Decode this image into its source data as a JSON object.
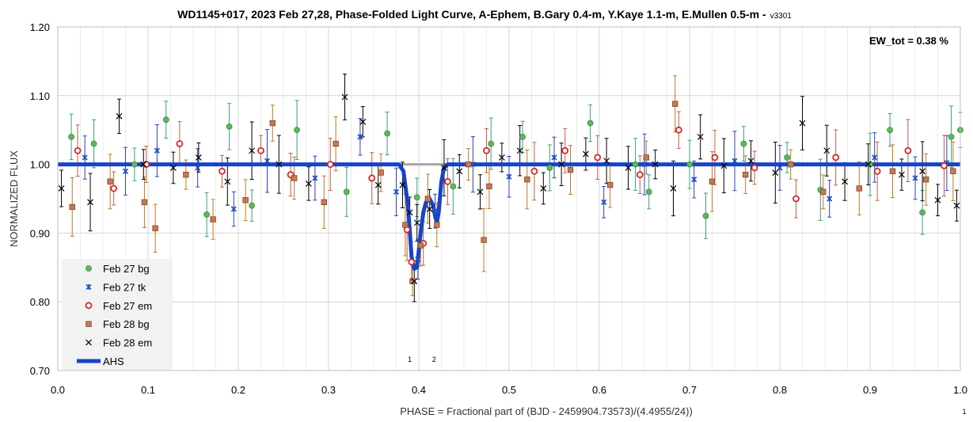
{
  "chart_data": {
    "type": "scatter",
    "title": "WD1145+017, 2023 Feb 27,28, Phase-Folded Light Curve, A-Ephem, B.Gary 0.4-m, Y.Kaye 1.1-m, E.Mullen 0.5-m -",
    "title_version": "v3301",
    "xlabel": "PHASE = Fractional part of (BJD - 2459904.73573)/(4.4955/24))",
    "ylabel": "NORMALIZED FLUX",
    "xlim": [
      0.0,
      1.0
    ],
    "ylim": [
      0.7,
      1.2
    ],
    "x_ticks": [
      "0.0",
      "0.1",
      "0.2",
      "0.3",
      "0.4",
      "0.5",
      "0.6",
      "0.7",
      "0.8",
      "0.9",
      "1.0"
    ],
    "y_ticks": [
      "0.70",
      "0.80",
      "0.90",
      "1.00",
      "1.10",
      "1.20"
    ],
    "grid": true,
    "legend_position": "bottom-left",
    "annotation": "EW_tot = 0.38 %",
    "dip_markers": [
      {
        "label": "1",
        "x": 0.39
      },
      {
        "label": "2",
        "x": 0.417
      }
    ],
    "corner_note": "1",
    "reference_level": {
      "y": 1.0,
      "color": "#a6a6a6"
    },
    "series": [
      {
        "name": "Feb 27 bg",
        "marker": "circle",
        "color": "#5cb85c",
        "edge": "#3c8d3c",
        "error_color": "#3c9e7c",
        "points": [
          [
            0.015,
            1.04
          ],
          [
            0.04,
            1.03
          ],
          [
            0.085,
            1.0
          ],
          [
            0.12,
            1.065
          ],
          [
            0.165,
            0.927
          ],
          [
            0.19,
            1.055
          ],
          [
            0.215,
            0.94
          ],
          [
            0.265,
            1.05
          ],
          [
            0.32,
            0.96
          ],
          [
            0.365,
            1.045
          ],
          [
            0.398,
            0.952
          ],
          [
            0.438,
            0.968
          ],
          [
            0.48,
            1.03
          ],
          [
            0.515,
            1.04
          ],
          [
            0.545,
            0.995
          ],
          [
            0.59,
            1.06
          ],
          [
            0.64,
            1.0
          ],
          [
            0.655,
            0.96
          ],
          [
            0.7,
            1.0
          ],
          [
            0.718,
            0.925
          ],
          [
            0.76,
            1.03
          ],
          [
            0.808,
            1.01
          ],
          [
            0.845,
            0.963
          ],
          [
            0.9,
            1.0
          ],
          [
            0.922,
            1.05
          ],
          [
            0.958,
            0.93
          ],
          [
            0.99,
            1.04
          ],
          [
            1.0,
            1.05
          ]
        ]
      },
      {
        "name": "Feb 27 tk",
        "marker": "star",
        "color": "#1f4fbf",
        "edge": "#1f4fbf",
        "error_color": "#2a3fbf",
        "points": [
          [
            0.03,
            1.01
          ],
          [
            0.075,
            0.99
          ],
          [
            0.11,
            1.02
          ],
          [
            0.155,
            0.995
          ],
          [
            0.195,
            0.935
          ],
          [
            0.232,
            1.005
          ],
          [
            0.285,
            0.98
          ],
          [
            0.335,
            1.04
          ],
          [
            0.375,
            0.96
          ],
          [
            0.399,
            0.862
          ],
          [
            0.418,
            0.932
          ],
          [
            0.46,
            1.0
          ],
          [
            0.5,
            0.982
          ],
          [
            0.55,
            1.01
          ],
          [
            0.605,
            0.945
          ],
          [
            0.65,
            1.0
          ],
          [
            0.705,
            0.978
          ],
          [
            0.75,
            1.005
          ],
          [
            0.8,
            0.995
          ],
          [
            0.855,
            0.95
          ],
          [
            0.905,
            1.01
          ],
          [
            0.95,
            0.98
          ],
          [
            0.985,
            1.002
          ]
        ]
      },
      {
        "name": "Feb 27 em",
        "marker": "open-circle",
        "color": "#ffffff",
        "edge": "#d62728",
        "error_color": "#c06040",
        "points": [
          [
            0.022,
            1.02
          ],
          [
            0.062,
            0.965
          ],
          [
            0.098,
            1.0
          ],
          [
            0.135,
            1.03
          ],
          [
            0.182,
            0.99
          ],
          [
            0.225,
            1.02
          ],
          [
            0.258,
            0.985
          ],
          [
            0.302,
            1.0
          ],
          [
            0.348,
            0.98
          ],
          [
            0.387,
            0.905
          ],
          [
            0.392,
            0.858
          ],
          [
            0.405,
            0.885
          ],
          [
            0.432,
            0.975
          ],
          [
            0.475,
            1.02
          ],
          [
            0.528,
            0.99
          ],
          [
            0.562,
            1.02
          ],
          [
            0.598,
            1.01
          ],
          [
            0.645,
            0.985
          ],
          [
            0.688,
            1.05
          ],
          [
            0.728,
            1.01
          ],
          [
            0.772,
            0.995
          ],
          [
            0.818,
            0.95
          ],
          [
            0.862,
            1.01
          ],
          [
            0.908,
            0.99
          ],
          [
            0.942,
            1.02
          ],
          [
            0.982,
            0.998
          ]
        ]
      },
      {
        "name": "Feb 28 bg",
        "marker": "square",
        "color": "#c87850",
        "edge": "#7a4a2a",
        "error_color": "#c07820",
        "points": [
          [
            0.016,
            0.938
          ],
          [
            0.058,
            0.975
          ],
          [
            0.096,
            0.945
          ],
          [
            0.108,
            0.907
          ],
          [
            0.142,
            0.985
          ],
          [
            0.172,
            0.92
          ],
          [
            0.208,
            0.948
          ],
          [
            0.238,
            1.06
          ],
          [
            0.262,
            0.98
          ],
          [
            0.295,
            0.945
          ],
          [
            0.308,
            1.03
          ],
          [
            0.358,
            0.988
          ],
          [
            0.385,
            0.912
          ],
          [
            0.393,
            0.83
          ],
          [
            0.402,
            0.882
          ],
          [
            0.41,
            0.95
          ],
          [
            0.42,
            0.912
          ],
          [
            0.455,
            1.0
          ],
          [
            0.472,
            0.89
          ],
          [
            0.478,
            0.968
          ],
          [
            0.52,
            0.978
          ],
          [
            0.568,
            0.992
          ],
          [
            0.612,
            0.97
          ],
          [
            0.652,
            1.01
          ],
          [
            0.684,
            1.088
          ],
          [
            0.725,
            0.975
          ],
          [
            0.762,
            0.985
          ],
          [
            0.812,
            1.0
          ],
          [
            0.848,
            0.96
          ],
          [
            0.888,
            0.965
          ],
          [
            0.925,
            0.99
          ],
          [
            0.962,
            0.978
          ],
          [
            0.992,
            0.99
          ]
        ]
      },
      {
        "name": "Feb 28 em",
        "marker": "x",
        "color": "#000000",
        "edge": "#000000",
        "error_color": "#000000",
        "points": [
          [
            0.004,
            0.965
          ],
          [
            0.036,
            0.945
          ],
          [
            0.068,
            1.07
          ],
          [
            0.095,
            1.0
          ],
          [
            0.128,
            0.995
          ],
          [
            0.156,
            1.01
          ],
          [
            0.188,
            0.975
          ],
          [
            0.215,
            1.02
          ],
          [
            0.245,
            1.0
          ],
          [
            0.278,
            0.972
          ],
          [
            0.318,
            1.098
          ],
          [
            0.338,
            1.062
          ],
          [
            0.355,
            0.97
          ],
          [
            0.382,
            0.97
          ],
          [
            0.39,
            0.93
          ],
          [
            0.395,
            0.83
          ],
          [
            0.398,
            0.915
          ],
          [
            0.412,
            0.935
          ],
          [
            0.428,
            0.995
          ],
          [
            0.445,
            0.99
          ],
          [
            0.468,
            0.96
          ],
          [
            0.492,
            1.01
          ],
          [
            0.512,
            1.02
          ],
          [
            0.538,
            0.965
          ],
          [
            0.558,
            1.0
          ],
          [
            0.585,
            1.015
          ],
          [
            0.608,
            1.005
          ],
          [
            0.632,
            0.995
          ],
          [
            0.662,
            1.0
          ],
          [
            0.682,
            0.965
          ],
          [
            0.712,
            1.04
          ],
          [
            0.738,
            0.998
          ],
          [
            0.768,
            1.005
          ],
          [
            0.795,
            0.988
          ],
          [
            0.825,
            1.06
          ],
          [
            0.852,
            1.02
          ],
          [
            0.872,
            0.975
          ],
          [
            0.898,
            1.0
          ],
          [
            0.935,
            0.985
          ],
          [
            0.958,
            0.99
          ],
          [
            0.975,
            0.948
          ],
          [
            0.996,
            0.94
          ]
        ]
      },
      {
        "name": "AHS",
        "marker": "line",
        "color": "#1544c8",
        "points": [
          [
            0.0,
            1.0
          ],
          [
            0.378,
            1.0
          ],
          [
            0.383,
            0.99
          ],
          [
            0.388,
            0.94
          ],
          [
            0.392,
            0.865
          ],
          [
            0.395,
            0.848
          ],
          [
            0.398,
            0.85
          ],
          [
            0.402,
            0.9
          ],
          [
            0.405,
            0.93
          ],
          [
            0.408,
            0.945
          ],
          [
            0.412,
            0.95
          ],
          [
            0.416,
            0.94
          ],
          [
            0.418,
            0.925
          ],
          [
            0.42,
            0.915
          ],
          [
            0.422,
            0.93
          ],
          [
            0.425,
            0.975
          ],
          [
            0.428,
            0.995
          ],
          [
            0.432,
            1.0
          ],
          [
            1.0,
            1.0
          ]
        ]
      }
    ]
  }
}
